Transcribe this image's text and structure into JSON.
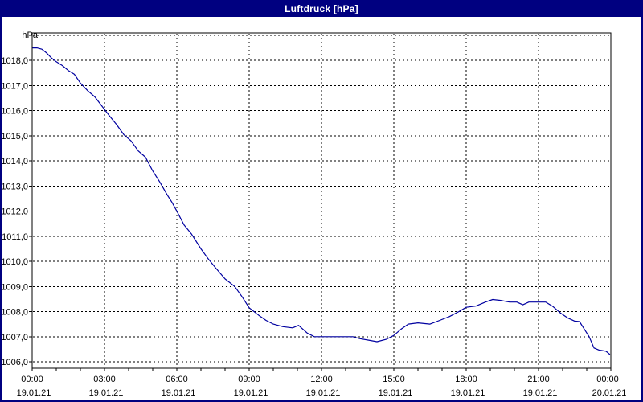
{
  "window": {
    "title": "Luftdruck [hPa]"
  },
  "colors": {
    "titlebar_bg": "#000080",
    "titlebar_text": "#ffffff",
    "window_border": "#000080",
    "plot_border": "#000000",
    "grid": "#000000",
    "line": "#0000a0",
    "background": "#ffffff"
  },
  "chart_data": {
    "type": "line",
    "title": "Luftdruck [hPa]",
    "ylabel": "hPa",
    "xlabel": "",
    "x_unit": "time, hours since 19.01.21 00:00",
    "xlim": [
      0,
      24
    ],
    "ylim": [
      1005.7,
      1019.1
    ],
    "grid": "dashed",
    "legend": "none",
    "y_gridline_values": [
      1006,
      1007,
      1008,
      1009,
      1010,
      1011,
      1012,
      1013,
      1014,
      1015,
      1016,
      1017,
      1018,
      1019
    ],
    "y_ticks": [
      {
        "value": 1018,
        "label": "1018,0"
      },
      {
        "value": 1017,
        "label": "1017,0"
      },
      {
        "value": 1016,
        "label": "1016,0"
      },
      {
        "value": 1015,
        "label": "1015,0"
      },
      {
        "value": 1014,
        "label": "1014,0"
      },
      {
        "value": 1013,
        "label": "1013,0"
      },
      {
        "value": 1012,
        "label": "1012,0"
      },
      {
        "value": 1011,
        "label": "1011,0"
      },
      {
        "value": 1010,
        "label": "1010,0"
      },
      {
        "value": 1009,
        "label": "1009,0"
      },
      {
        "value": 1008,
        "label": "1008,0"
      },
      {
        "value": 1007,
        "label": "1007,0"
      },
      {
        "value": 1006,
        "label": "1006,0"
      }
    ],
    "x_major_ticks": [
      {
        "hour": 0,
        "time": "00:00",
        "date": "19.01.21"
      },
      {
        "hour": 3,
        "time": "03:00",
        "date": "19.01.21"
      },
      {
        "hour": 6,
        "time": "06:00",
        "date": "19.01.21"
      },
      {
        "hour": 9,
        "time": "09:00",
        "date": "19.01.21"
      },
      {
        "hour": 12,
        "time": "12:00",
        "date": "19.01.21"
      },
      {
        "hour": 15,
        "time": "15:00",
        "date": "19.01.21"
      },
      {
        "hour": 18,
        "time": "18:00",
        "date": "19.01.21"
      },
      {
        "hour": 21,
        "time": "21:00",
        "date": "19.01.21"
      },
      {
        "hour": 24,
        "time": "00:00",
        "date": "20.01.21"
      }
    ],
    "x_minor_tick_every_hours": 1,
    "series": [
      {
        "name": "Luftdruck",
        "color": "#0000a0",
        "points_time_hpa": [
          [
            0.03,
            1018.5
          ],
          [
            0.2,
            1018.5
          ],
          [
            0.4,
            1018.45
          ],
          [
            0.6,
            1018.3
          ],
          [
            0.8,
            1018.1
          ],
          [
            1.0,
            1017.95
          ],
          [
            1.25,
            1017.8
          ],
          [
            1.5,
            1017.6
          ],
          [
            1.75,
            1017.45
          ],
          [
            2.0,
            1017.1
          ],
          [
            2.3,
            1016.8
          ],
          [
            2.6,
            1016.55
          ],
          [
            2.8,
            1016.3
          ],
          [
            3.0,
            1016.05
          ],
          [
            3.2,
            1015.8
          ],
          [
            3.5,
            1015.45
          ],
          [
            3.8,
            1015.05
          ],
          [
            4.1,
            1014.8
          ],
          [
            4.4,
            1014.4
          ],
          [
            4.7,
            1014.15
          ],
          [
            5.0,
            1013.6
          ],
          [
            5.3,
            1013.15
          ],
          [
            5.6,
            1012.65
          ],
          [
            5.8,
            1012.35
          ],
          [
            6.0,
            1012.0
          ],
          [
            6.3,
            1011.45
          ],
          [
            6.6,
            1011.1
          ],
          [
            7.0,
            1010.5
          ],
          [
            7.3,
            1010.1
          ],
          [
            7.6,
            1009.75
          ],
          [
            8.0,
            1009.3
          ],
          [
            8.4,
            1009.0
          ],
          [
            8.7,
            1008.6
          ],
          [
            9.0,
            1008.15
          ],
          [
            9.4,
            1007.85
          ],
          [
            9.7,
            1007.65
          ],
          [
            10.0,
            1007.5
          ],
          [
            10.4,
            1007.4
          ],
          [
            10.8,
            1007.35
          ],
          [
            11.05,
            1007.45
          ],
          [
            11.4,
            1007.15
          ],
          [
            11.7,
            1007.0
          ],
          [
            12.5,
            1007.0
          ],
          [
            13.3,
            1007.0
          ],
          [
            13.6,
            1006.92
          ],
          [
            14.0,
            1006.85
          ],
          [
            14.3,
            1006.8
          ],
          [
            14.7,
            1006.9
          ],
          [
            15.0,
            1007.05
          ],
          [
            15.3,
            1007.3
          ],
          [
            15.6,
            1007.5
          ],
          [
            16.0,
            1007.55
          ],
          [
            16.5,
            1007.5
          ],
          [
            16.9,
            1007.65
          ],
          [
            17.3,
            1007.8
          ],
          [
            17.7,
            1008.0
          ],
          [
            18.0,
            1008.17
          ],
          [
            18.4,
            1008.22
          ],
          [
            18.8,
            1008.38
          ],
          [
            19.1,
            1008.48
          ],
          [
            19.4,
            1008.45
          ],
          [
            19.8,
            1008.38
          ],
          [
            20.1,
            1008.38
          ],
          [
            20.35,
            1008.27
          ],
          [
            20.6,
            1008.38
          ],
          [
            21.3,
            1008.38
          ],
          [
            21.6,
            1008.2
          ],
          [
            21.9,
            1007.95
          ],
          [
            22.2,
            1007.75
          ],
          [
            22.5,
            1007.62
          ],
          [
            22.7,
            1007.6
          ],
          [
            22.9,
            1007.3
          ],
          [
            23.1,
            1007.0
          ],
          [
            23.3,
            1006.55
          ],
          [
            23.5,
            1006.47
          ],
          [
            23.8,
            1006.42
          ],
          [
            23.95,
            1006.3
          ]
        ]
      }
    ]
  }
}
